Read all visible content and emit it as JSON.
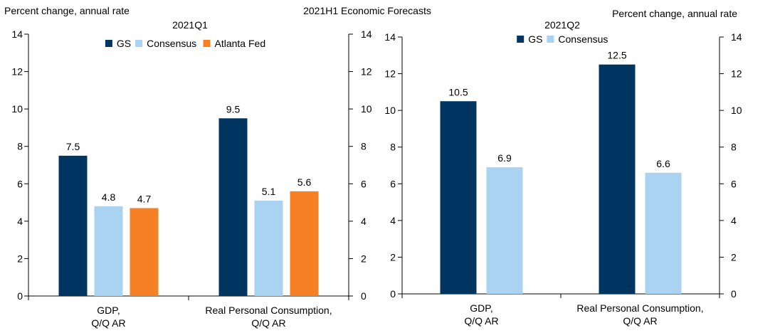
{
  "figure_title": "2021H1 Economic Forecasts",
  "chart_data": [
    {
      "type": "bar",
      "title": "2021Q1",
      "unit_label": "Percent change, annual rate",
      "categories": [
        "GDP,\nQ/Q AR",
        "Real Personal Consumption,\nQ/Q AR"
      ],
      "series": [
        {
          "name": "GS",
          "color": "#003461",
          "values": [
            7.5,
            9.5
          ]
        },
        {
          "name": "Consensus",
          "color": "#a9d3f1",
          "values": [
            4.8,
            5.1
          ]
        },
        {
          "name": "Atlanta Fed",
          "color": "#f58025",
          "values": [
            4.7,
            5.6
          ]
        }
      ],
      "ylim": [
        0,
        14
      ],
      "yticks": [
        0,
        2,
        4,
        6,
        8,
        10,
        12,
        14
      ],
      "legend": "top-center",
      "grid": false
    },
    {
      "type": "bar",
      "title": "2021Q2",
      "unit_label": "Percent change, annual rate",
      "categories": [
        "GDP,\nQ/Q AR",
        "Real Personal Consumption,\nQ/Q AR"
      ],
      "series": [
        {
          "name": "GS",
          "color": "#003461",
          "values": [
            10.5,
            12.5
          ]
        },
        {
          "name": "Consensus",
          "color": "#a9d3f1",
          "values": [
            6.9,
            6.6
          ]
        }
      ],
      "ylim": [
        0,
        14
      ],
      "yticks": [
        0,
        2,
        4,
        6,
        8,
        10,
        12,
        14
      ],
      "legend": "top-center",
      "grid": false
    }
  ]
}
